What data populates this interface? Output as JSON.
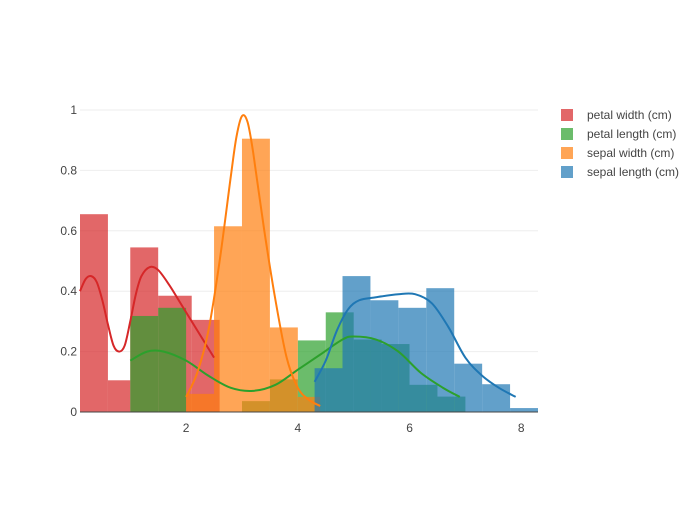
{
  "chart_data": {
    "type": "histogram-kde",
    "title": "",
    "xlabel": "",
    "ylabel": "",
    "xlim": [
      0.1,
      8.3
    ],
    "ylim": [
      0,
      1
    ],
    "x_ticks": [
      2,
      4,
      6,
      8
    ],
    "y_ticks": [
      0,
      0.2,
      0.4,
      0.6,
      0.8,
      1
    ],
    "y_tick_labels": [
      "0",
      "0.2",
      "0.4",
      "0.6",
      "0.8",
      "1"
    ],
    "x_tick_labels": [
      "2",
      "4",
      "6",
      "8"
    ],
    "grid": "horizontal",
    "legend_position": "top-right",
    "bar_opacity": 0.7,
    "series": [
      {
        "name": "petal width (cm)",
        "color": "#d62728",
        "bins": [
          {
            "x0": 0.1,
            "x1": 0.6,
            "y": 0.655
          },
          {
            "x0": 0.6,
            "x1": 1.0,
            "y": 0.105
          },
          {
            "x0": 1.0,
            "x1": 1.5,
            "y": 0.545
          },
          {
            "x0": 1.5,
            "x1": 2.1,
            "y": 0.385
          },
          {
            "x0": 2.1,
            "x1": 2.6,
            "y": 0.305
          }
        ],
        "kde": [
          [
            0.1,
            0.4
          ],
          [
            0.2,
            0.44
          ],
          [
            0.3,
            0.45
          ],
          [
            0.4,
            0.43
          ],
          [
            0.5,
            0.37
          ],
          [
            0.6,
            0.29
          ],
          [
            0.7,
            0.22
          ],
          [
            0.8,
            0.2
          ],
          [
            0.9,
            0.22
          ],
          [
            1.0,
            0.3
          ],
          [
            1.1,
            0.39
          ],
          [
            1.2,
            0.45
          ],
          [
            1.35,
            0.48
          ],
          [
            1.5,
            0.47
          ],
          [
            1.7,
            0.42
          ],
          [
            1.9,
            0.36
          ],
          [
            2.1,
            0.3
          ],
          [
            2.3,
            0.24
          ],
          [
            2.5,
            0.18
          ]
        ]
      },
      {
        "name": "petal length (cm)",
        "color": "#2ca02c",
        "bins": [
          {
            "x0": 1.0,
            "x1": 1.5,
            "y": 0.318
          },
          {
            "x0": 1.5,
            "x1": 2.0,
            "y": 0.345
          },
          {
            "x0": 3.0,
            "x1": 3.5,
            "y": 0.036
          },
          {
            "x0": 3.5,
            "x1": 4.0,
            "y": 0.108
          },
          {
            "x0": 4.0,
            "x1": 4.5,
            "y": 0.237
          },
          {
            "x0": 4.5,
            "x1": 5.0,
            "y": 0.33
          },
          {
            "x0": 5.0,
            "x1": 5.5,
            "y": 0.24
          },
          {
            "x0": 5.5,
            "x1": 6.0,
            "y": 0.225
          },
          {
            "x0": 6.0,
            "x1": 6.5,
            "y": 0.09
          },
          {
            "x0": 6.5,
            "x1": 7.0,
            "y": 0.051
          }
        ],
        "kde": [
          [
            1.0,
            0.17
          ],
          [
            1.3,
            0.2
          ],
          [
            1.6,
            0.2
          ],
          [
            2.0,
            0.17
          ],
          [
            2.4,
            0.12
          ],
          [
            2.8,
            0.08
          ],
          [
            3.2,
            0.07
          ],
          [
            3.6,
            0.09
          ],
          [
            4.0,
            0.14
          ],
          [
            4.4,
            0.19
          ],
          [
            4.8,
            0.24
          ],
          [
            5.0,
            0.25
          ],
          [
            5.4,
            0.24
          ],
          [
            5.8,
            0.2
          ],
          [
            6.2,
            0.13
          ],
          [
            6.6,
            0.08
          ],
          [
            6.9,
            0.05
          ]
        ]
      },
      {
        "name": "sepal width (cm)",
        "color": "#ff7f0e",
        "bins": [
          {
            "x0": 2.0,
            "x1": 2.5,
            "y": 0.06
          },
          {
            "x0": 2.5,
            "x1": 3.0,
            "y": 0.615
          },
          {
            "x0": 3.0,
            "x1": 3.5,
            "y": 0.905
          },
          {
            "x0": 3.5,
            "x1": 4.0,
            "y": 0.28
          },
          {
            "x0": 4.0,
            "x1": 4.4,
            "y": 0.05
          }
        ],
        "kde": [
          [
            2.0,
            0.05
          ],
          [
            2.2,
            0.13
          ],
          [
            2.4,
            0.27
          ],
          [
            2.6,
            0.5
          ],
          [
            2.8,
            0.78
          ],
          [
            2.9,
            0.91
          ],
          [
            3.0,
            0.98
          ],
          [
            3.1,
            0.96
          ],
          [
            3.2,
            0.86
          ],
          [
            3.4,
            0.6
          ],
          [
            3.6,
            0.37
          ],
          [
            3.8,
            0.18
          ],
          [
            4.0,
            0.08
          ],
          [
            4.2,
            0.04
          ],
          [
            4.4,
            0.02
          ]
        ]
      },
      {
        "name": "sepal length (cm)",
        "color": "#1f77b4",
        "bins": [
          {
            "x0": 4.3,
            "x1": 4.8,
            "y": 0.145
          },
          {
            "x0": 4.8,
            "x1": 5.3,
            "y": 0.45
          },
          {
            "x0": 5.3,
            "x1": 5.8,
            "y": 0.37
          },
          {
            "x0": 5.8,
            "x1": 6.3,
            "y": 0.345
          },
          {
            "x0": 6.3,
            "x1": 6.8,
            "y": 0.41
          },
          {
            "x0": 6.8,
            "x1": 7.3,
            "y": 0.16
          },
          {
            "x0": 7.3,
            "x1": 7.8,
            "y": 0.092
          },
          {
            "x0": 7.8,
            "x1": 8.3,
            "y": 0.013
          }
        ],
        "kde": [
          [
            4.3,
            0.1
          ],
          [
            4.5,
            0.17
          ],
          [
            4.7,
            0.27
          ],
          [
            4.9,
            0.34
          ],
          [
            5.1,
            0.37
          ],
          [
            5.4,
            0.38
          ],
          [
            5.8,
            0.39
          ],
          [
            6.1,
            0.39
          ],
          [
            6.4,
            0.36
          ],
          [
            6.7,
            0.28
          ],
          [
            7.0,
            0.18
          ],
          [
            7.3,
            0.12
          ],
          [
            7.6,
            0.08
          ],
          [
            7.9,
            0.05
          ]
        ]
      }
    ]
  }
}
